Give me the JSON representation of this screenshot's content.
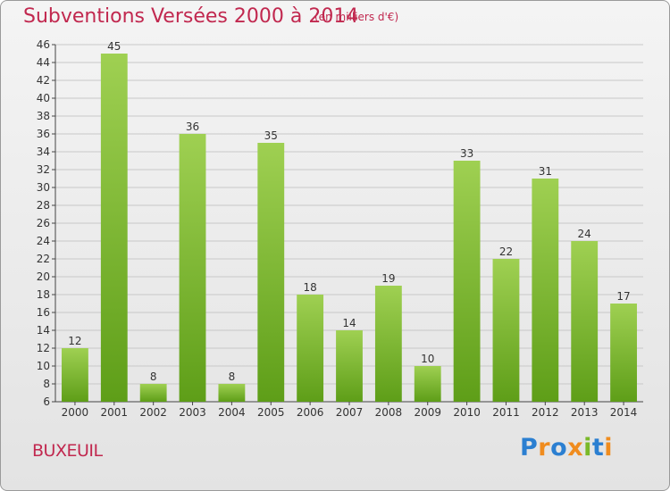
{
  "title": "Subventions Versées 2000 à 2014",
  "unit_note": "(en milliers d'€)",
  "place": "BUXEUIL",
  "logo": {
    "text": "Proxiti"
  },
  "colors": {
    "title": "#c1284f",
    "bar_top": "#9fd052",
    "bar_bottom": "#5e9e18",
    "grid": "#c8c8c8"
  },
  "chart_data": {
    "type": "bar",
    "title": "Subventions Versées 2000 à 2014",
    "subtitle": "(en milliers d'€)",
    "xlabel": "",
    "ylabel": "",
    "categories": [
      "2000",
      "2001",
      "2002",
      "2003",
      "2004",
      "2005",
      "2006",
      "2007",
      "2008",
      "2009",
      "2010",
      "2011",
      "2012",
      "2013",
      "2014"
    ],
    "values": [
      12,
      45,
      8,
      36,
      8,
      35,
      18,
      14,
      19,
      10,
      33,
      22,
      31,
      24,
      17
    ],
    "ylim": [
      6,
      46
    ],
    "ytick_step": 2,
    "grid": true,
    "data_labels": true
  }
}
